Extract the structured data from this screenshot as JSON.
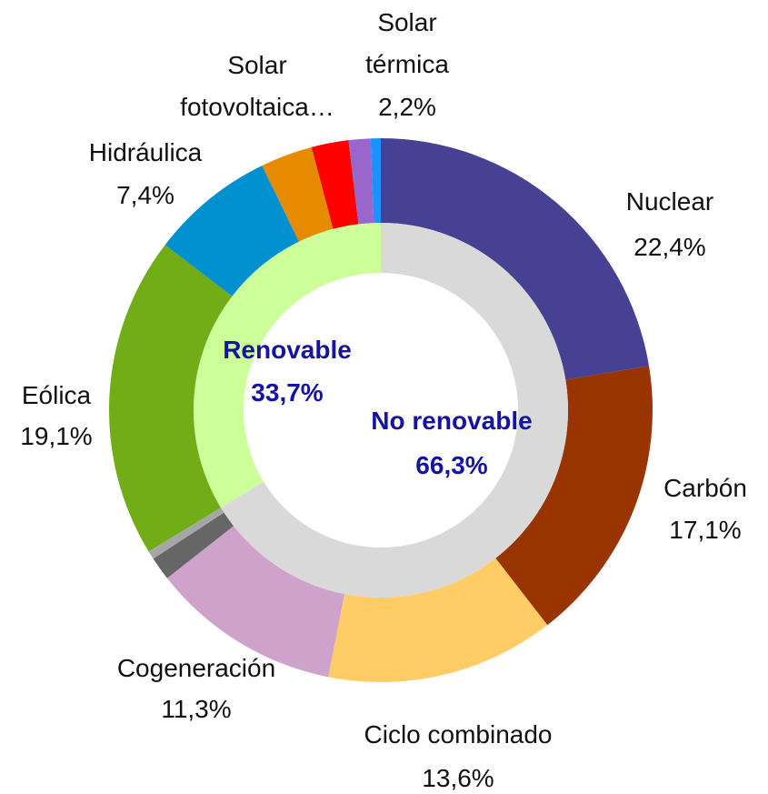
{
  "chart_data": {
    "type": "donut",
    "rings": [
      {
        "categories": [
          "Nuclear",
          "Carbón",
          "Ciclo combinado",
          "Cogeneración",
          null,
          null,
          "Eólica",
          "Hidráulica",
          "Solar fotovoltaica…",
          "Solar térmica",
          null,
          null
        ],
        "values": [
          22.4,
          17.1,
          13.6,
          11.3,
          1.4,
          0.5,
          19.1,
          7.4,
          3.1,
          2.2,
          1.3,
          0.6
        ],
        "value_labels": [
          "22,4%",
          "17,1%",
          "13,6%",
          "11,3%",
          null,
          null,
          "19,1%",
          "7,4%",
          null,
          "2,2%",
          null,
          null
        ],
        "colors": [
          "#474193",
          "#993300",
          "#ffcc66",
          "#cfa2cc",
          "#666666",
          "#a6a6a6",
          "#70ad17",
          "#0090d0",
          "#e68a00",
          "#ff0000",
          "#9966cc",
          "#1e90ff"
        ]
      },
      {
        "categories": [
          "No renovable",
          "Renovable"
        ],
        "values": [
          66.3,
          33.7
        ],
        "value_labels": [
          "66,3%",
          "33,7%"
        ],
        "colors": [
          "#d9d9d9",
          "#ccff99"
        ]
      }
    ]
  }
}
